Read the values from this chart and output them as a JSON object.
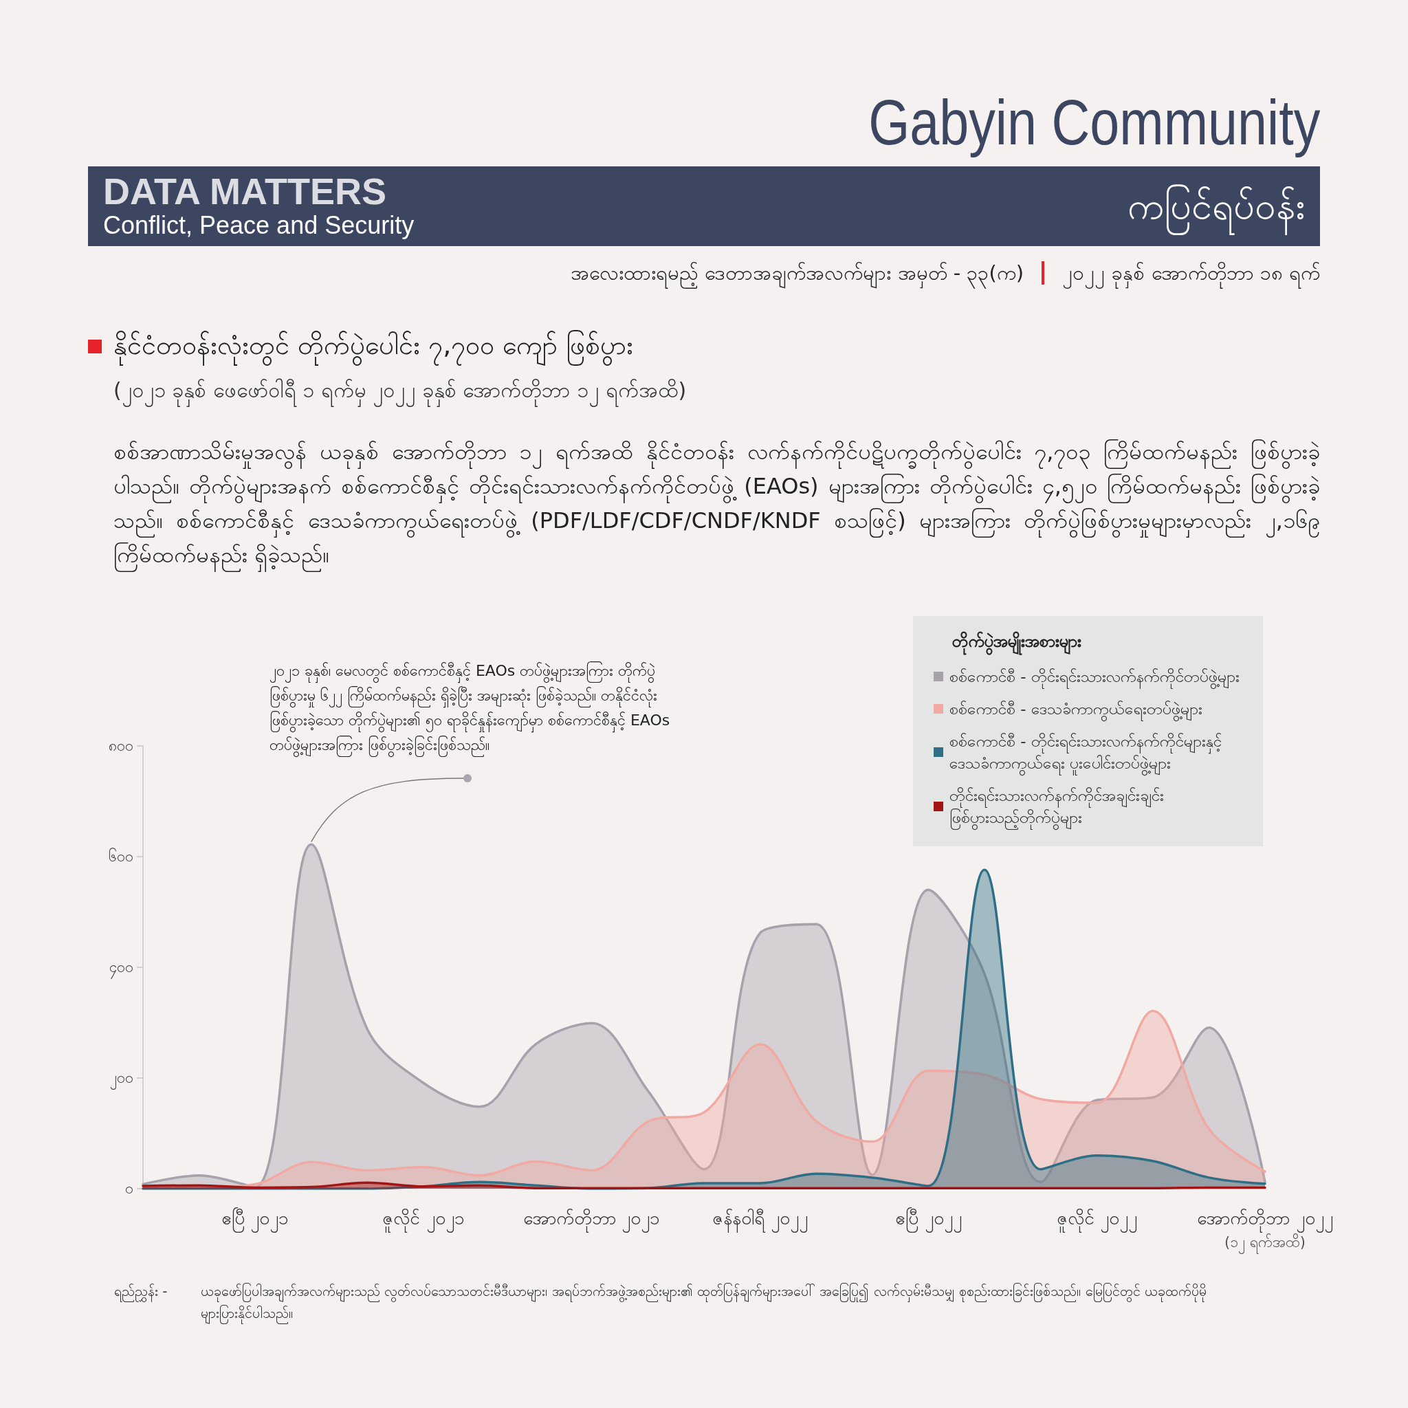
{
  "chart_data": {
    "type": "area",
    "title": "နိုင်ငံတဝန်းလုံးတွင် တိုက်ပွဲပေါင်း ၇,၇၀၀ ကျော် ဖြစ်ပွား",
    "subtitle": "(၂၀၂၁ ခုနှစ် ဖေဖော်ဝါရီ ၁ ရက်မှ ၂၀၂၂ ခုနှစ် အောက်တိုဘာ ၁၂ ရက်အထိ)",
    "legend_title": "တိုက်ပွဲအမျိုးအစားများ",
    "annotations": [
      "Gabyin Community",
      "DATA MATTERS",
      "Conflict, Peace and Security",
      "ကပြင်ရပ်ဝန်း",
      "အလေးထားရမည့် ဒေတာအချက်အလက်များ အမှတ် - ၃၃(က)",
      "၂၀၂၂ ခုနှစ် အောက်တိုဘာ ၁၈ ရက်",
      "စစ်အာဏာသိမ်းမှုအလွန် ယခုနှစ် အောက်တိုဘာ ၁၂ ရက်အထိ နိုင်ငံတဝန်း လက်နက်ကိုင်ပဋိပက္ခတိုက်ပွဲပေါင်း ၇,၇၀၃ ကြိမ်ထက်မနည်း ဖြစ်ပွားခဲ့ပါသည်။ တိုက်ပွဲများအနက် စစ်ကောင်စီနှင့် တိုင်းရင်းသားလက်နက်ကိုင်တပ်ဖွဲ့ (EAOs) များအကြား တိုက်ပွဲပေါင်း ၄,၅၂၀ ကြိမ်ထက်မနည်း ဖြစ်ပွားခဲ့သည်။ စစ်ကောင်စီနှင့် ဒေသခံကာကွယ်ရေးတပ်ဖွဲ့ (PDF/LDF/CDF/CNDF/KNDF စသဖြင့်) များအကြား တိုက်ပွဲဖြစ်ပွားမှုများမှာလည်း ၂,၁၆၉ ကြိမ်ထက်မနည်း ရှိခဲ့သည်။",
      "၂၀၂၁ ခုနှစ်၊ မေလတွင် စစ်ကောင်စီနှင့် EAOs တပ်ဖွဲ့များအကြား တိုက်ပွဲဖြစ်ပွားမှု ၆၂၂ ကြိမ်ထက်မနည်း ရှိခဲ့ပြီး အများဆုံး ဖြစ်ခဲ့သည်။ တနိုင်ငံလုံး ဖြစ်ပွားခဲ့သော တိုက်ပွဲများ၏ ၅၀ ရာခိုင်နှုန်းကျော်မှာ စစ်ကောင်စီနှင့် EAOs တပ်ဖွဲ့များအကြား ဖြစ်ပွားခဲ့ခြင်းဖြစ်သည်။",
      "ရည်ညွှန်း -",
      "ယခုဖော်ပြပါအချက်အလက်များသည် လွတ်လပ်သောသတင်းမီဒီယာများ၊ အရပ်ဘက်အဖွဲ့အစည်းများ၏ ထုတ်ပြန်ချက်များအပေါ် အခြေပြု၍ လက်လှမ်းမီသမျှ စုစည်းထားခြင်းဖြစ်သည်။ မြေပြင်တွင် ယခုထက်ပိုမို များပြားနိုင်ပါသည်။"
    ],
    "categories": [
      null,
      null,
      "ဧပြီ ၂၀၂၁",
      null,
      null,
      "ဇူလိုင် ၂၀၂၁",
      null,
      null,
      "အောက်တိုဘာ ၂၀၂၁",
      null,
      null,
      "ဇန်နဝါရီ ၂၀၂၂",
      null,
      null,
      "ဧပြီ ၂၀၂၂",
      null,
      null,
      "ဇူလိုင် ၂၀၂၂",
      null,
      null,
      "အောက်တိုဘာ ၂၀၂၂ (၁၂ ရက်အထိ)"
    ],
    "series": [
      {
        "name": "စစ်ကောင်စီ - တိုင်းရင်းသားလက်နက်ကိုင်တပ်ဖွဲ့များ",
        "color": "#a7a1ab",
        "values": [
          8,
          24,
          3,
          622,
          288,
          191,
          148,
          261,
          299,
          177,
          35,
          462,
          478,
          25,
          540,
          388,
          12,
          160,
          165,
          291,
          12
        ]
      },
      {
        "name": "စစ်ကောင်စီ - ဒေသခံကာကွယ်ရေးတပ်ဖွဲ့များ",
        "color": "#f0aaa3",
        "values": [
          2,
          2,
          8,
          48,
          33,
          39,
          24,
          49,
          33,
          121,
          138,
          261,
          122,
          85,
          213,
          206,
          162,
          155,
          321,
          108,
          31
        ]
      },
      {
        "name": "စစ်ကောင်စီ - တိုင်းရင်းသားလက်နက်ကိုင်များနှင့် ဒေသခံကာကွယ်ရေး ပူးပေါင်းတပ်ဖွဲ့များ",
        "color": "#2f6f86",
        "values": [
          0,
          0,
          0,
          0,
          0,
          4,
          12,
          6,
          0,
          1,
          10,
          10,
          27,
          20,
          5,
          576,
          35,
          60,
          50,
          20,
          9
        ]
      },
      {
        "name": "တိုင်းရင်းသားလက်နက်ကိုင်အချင်းချင်း ဖြစ်ပွားသည့်တိုက်ပွဲများ",
        "color": "#a31515",
        "values": [
          5,
          6,
          2,
          3,
          11,
          4,
          6,
          1,
          1,
          1,
          1,
          1,
          1,
          1,
          1,
          1,
          1,
          1,
          1,
          2,
          2
        ]
      }
    ],
    "ylim": [
      0,
      800
    ],
    "yticks": [
      {
        "value": 0,
        "label": "၀"
      },
      {
        "value": 200,
        "label": "၂၀၀"
      },
      {
        "value": 400,
        "label": "၄၀၀"
      },
      {
        "value": 600,
        "label": "၆၀၀"
      },
      {
        "value": 800,
        "label": "၈၀၀"
      }
    ],
    "grid": false,
    "legend": "top right",
    "marker": "none"
  }
}
